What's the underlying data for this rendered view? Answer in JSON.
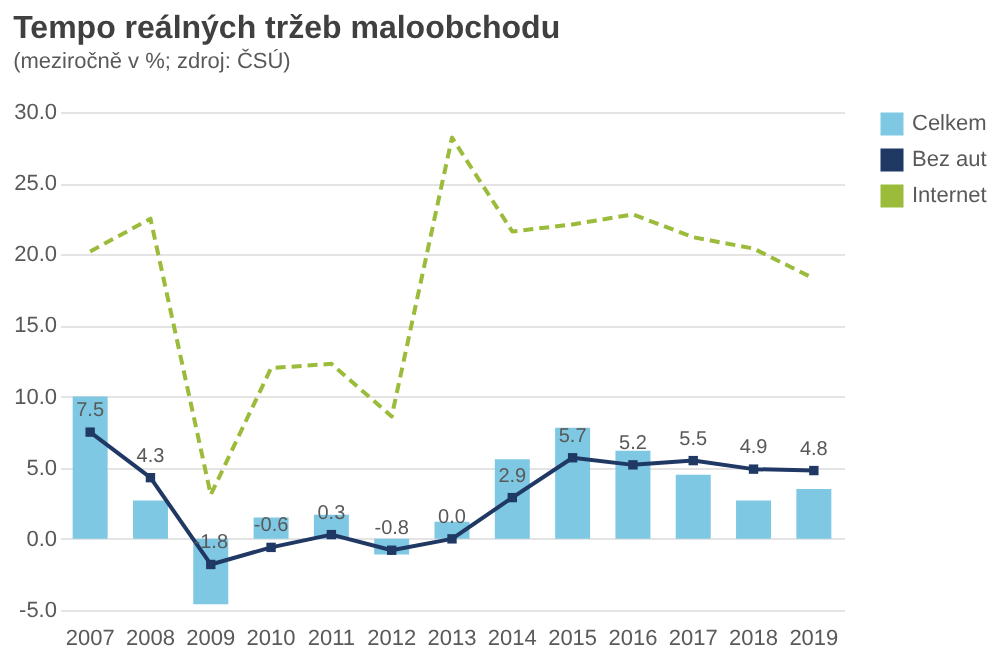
{
  "chart_data": {
    "type": "bar",
    "title": "Tempo reálných tržeb maloobchodu",
    "subtitle": "(meziročně v %; zdroj: ČSÚ)",
    "categories": [
      "2007",
      "2008",
      "2009",
      "2010",
      "2011",
      "2012",
      "2013",
      "2014",
      "2015",
      "2016",
      "2017",
      "2018",
      "2019"
    ],
    "series": [
      {
        "name": "Celkem",
        "color": "#7ec8e3",
        "values": [
          10.0,
          2.7,
          -4.6,
          1.5,
          1.7,
          -1.1,
          1.2,
          5.6,
          7.8,
          6.2,
          4.5,
          2.7,
          3.5
        ]
      },
      {
        "name": "Bez aut",
        "type": "line",
        "color": "#1f3864",
        "marker": "square",
        "line_style": "solid",
        "values": [
          7.5,
          4.3,
          -1.8,
          -0.6,
          0.3,
          -0.8,
          0.0,
          2.9,
          5.7,
          5.2,
          5.5,
          4.9,
          4.8
        ],
        "value_labels": [
          "7.5",
          "4.3",
          "-1.8",
          "-0.6",
          "0.3",
          "-0.8",
          "0.0",
          "2.9",
          "5.7",
          "5.2",
          "5.5",
          "4.9",
          "4.8"
        ]
      },
      {
        "name": "Internet",
        "type": "line",
        "color": "#9bbb3b",
        "marker": "none",
        "line_style": "dashed",
        "values": [
          20.2,
          22.5,
          3.1,
          12.0,
          12.3,
          8.6,
          28.2,
          21.6,
          22.1,
          22.8,
          21.2,
          20.4,
          18.3
        ]
      }
    ],
    "ylim": [
      -5,
      30
    ],
    "yticks": [
      {
        "value": -5,
        "label": "-5.0"
      },
      {
        "value": 0,
        "label": "0.0"
      },
      {
        "value": 5,
        "label": "5.0"
      },
      {
        "value": 10,
        "label": "10.0"
      },
      {
        "value": 15,
        "label": "15.0"
      },
      {
        "value": 20,
        "label": "20.0"
      },
      {
        "value": 25,
        "label": "25.0"
      },
      {
        "value": 30,
        "label": "30.0"
      }
    ],
    "grid": "y",
    "legend": "right"
  }
}
